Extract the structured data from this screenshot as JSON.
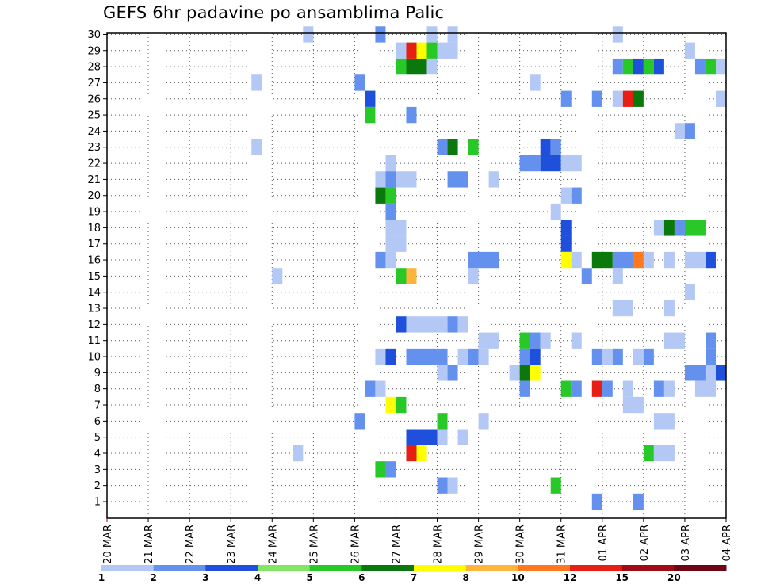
{
  "page_title": "GEFS 6hr padavine po ansamblima Palic",
  "chart_data": {
    "type": "heatmap",
    "title": "GEFS 6hr padavine po ansamblima Palic",
    "x_time_axis": {
      "range_hours": [
        0,
        360
      ],
      "tick_labels": [
        "20 MAR",
        "21 MAR",
        "22 MAR",
        "23 MAR",
        "24 MAR",
        "25 MAR",
        "26 MAR",
        "27 MAR",
        "28 MAR",
        "29 MAR",
        "30 MAR",
        "31 MAR",
        "01 APR",
        "02 APR",
        "03 APR",
        "04 APR"
      ],
      "step_hours": 6
    },
    "y_members": {
      "range": [
        1,
        30
      ],
      "tick_labels": [
        1,
        2,
        3,
        4,
        5,
        6,
        7,
        8,
        9,
        10,
        11,
        12,
        13,
        14,
        15,
        16,
        17,
        18,
        19,
        20,
        21,
        22,
        23,
        24,
        25,
        26,
        27,
        28,
        29,
        30
      ]
    },
    "grid": true,
    "colorbar": {
      "levels": [
        "1",
        "2",
        "3",
        "4",
        "5",
        "6",
        "7",
        "8",
        "10",
        "12",
        "15",
        "20"
      ],
      "colors": [
        "#b4c8f5",
        "#6491ee",
        "#1e50dc",
        "#82e664",
        "#28c828",
        "#0a780a",
        "#ffff00",
        "#ffb43c",
        "#ff781e",
        "#e61e14",
        "#a00a14",
        "#6e0514"
      ]
    },
    "cells_legend": "[member, start_hour, duration_hours, class_index]",
    "cells": [
      [
        30,
        114,
        6,
        0
      ],
      [
        30,
        156,
        6,
        1
      ],
      [
        30,
        186,
        6,
        0
      ],
      [
        30,
        198,
        6,
        0
      ],
      [
        30,
        294,
        6,
        0
      ],
      [
        29,
        168,
        6,
        0
      ],
      [
        29,
        174,
        6,
        9
      ],
      [
        29,
        180,
        6,
        6
      ],
      [
        29,
        186,
        6,
        4
      ],
      [
        29,
        192,
        12,
        0
      ],
      [
        29,
        336,
        6,
        0
      ],
      [
        28,
        168,
        6,
        4
      ],
      [
        28,
        174,
        12,
        5
      ],
      [
        28,
        186,
        6,
        0
      ],
      [
        28,
        294,
        6,
        1
      ],
      [
        28,
        300,
        6,
        4
      ],
      [
        28,
        306,
        6,
        2
      ],
      [
        28,
        312,
        6,
        4
      ],
      [
        28,
        318,
        6,
        2
      ],
      [
        28,
        342,
        6,
        1
      ],
      [
        28,
        348,
        6,
        4
      ],
      [
        28,
        354,
        6,
        0
      ],
      [
        27,
        84,
        6,
        0
      ],
      [
        27,
        144,
        6,
        1
      ],
      [
        27,
        246,
        6,
        0
      ],
      [
        26,
        150,
        6,
        2
      ],
      [
        26,
        264,
        6,
        1
      ],
      [
        26,
        282,
        6,
        1
      ],
      [
        26,
        294,
        6,
        0
      ],
      [
        26,
        300,
        6,
        9
      ],
      [
        26,
        306,
        6,
        5
      ],
      [
        26,
        354,
        6,
        0
      ],
      [
        25,
        150,
        6,
        4
      ],
      [
        25,
        174,
        6,
        1
      ],
      [
        24,
        330,
        6,
        0
      ],
      [
        24,
        336,
        6,
        1
      ],
      [
        23,
        84,
        6,
        0
      ],
      [
        23,
        192,
        6,
        1
      ],
      [
        23,
        198,
        6,
        5
      ],
      [
        23,
        210,
        6,
        4
      ],
      [
        23,
        252,
        6,
        2
      ],
      [
        23,
        258,
        6,
        1
      ],
      [
        22,
        162,
        6,
        0
      ],
      [
        22,
        240,
        12,
        1
      ],
      [
        22,
        252,
        12,
        2
      ],
      [
        22,
        264,
        12,
        0
      ],
      [
        21,
        156,
        6,
        0
      ],
      [
        21,
        162,
        6,
        1
      ],
      [
        21,
        168,
        12,
        0
      ],
      [
        21,
        198,
        12,
        1
      ],
      [
        21,
        222,
        6,
        0
      ],
      [
        20,
        156,
        6,
        5
      ],
      [
        20,
        162,
        6,
        4
      ],
      [
        20,
        264,
        6,
        0
      ],
      [
        20,
        270,
        6,
        1
      ],
      [
        19,
        162,
        6,
        1
      ],
      [
        19,
        258,
        6,
        0
      ],
      [
        18,
        162,
        12,
        0
      ],
      [
        18,
        264,
        6,
        2
      ],
      [
        18,
        318,
        6,
        0
      ],
      [
        18,
        324,
        6,
        5
      ],
      [
        18,
        330,
        6,
        1
      ],
      [
        18,
        336,
        12,
        4
      ],
      [
        17,
        162,
        12,
        0
      ],
      [
        17,
        264,
        6,
        2
      ],
      [
        16,
        156,
        6,
        1
      ],
      [
        16,
        162,
        6,
        0
      ],
      [
        16,
        210,
        18,
        1
      ],
      [
        16,
        264,
        6,
        6
      ],
      [
        16,
        270,
        6,
        0
      ],
      [
        16,
        282,
        12,
        5
      ],
      [
        16,
        294,
        12,
        1
      ],
      [
        16,
        306,
        6,
        8
      ],
      [
        16,
        312,
        6,
        0
      ],
      [
        16,
        324,
        6,
        0
      ],
      [
        16,
        336,
        12,
        0
      ],
      [
        16,
        348,
        6,
        2
      ],
      [
        15,
        96,
        6,
        0
      ],
      [
        15,
        168,
        6,
        4
      ],
      [
        15,
        174,
        6,
        7
      ],
      [
        15,
        210,
        6,
        0
      ],
      [
        15,
        276,
        6,
        1
      ],
      [
        15,
        294,
        6,
        0
      ],
      [
        14,
        336,
        6,
        0
      ],
      [
        13,
        294,
        12,
        0
      ],
      [
        13,
        324,
        6,
        0
      ],
      [
        12,
        168,
        6,
        2
      ],
      [
        12,
        174,
        18,
        0
      ],
      [
        12,
        192,
        6,
        0
      ],
      [
        12,
        198,
        6,
        1
      ],
      [
        12,
        204,
        6,
        0
      ],
      [
        11,
        216,
        12,
        0
      ],
      [
        11,
        240,
        6,
        4
      ],
      [
        11,
        246,
        6,
        1
      ],
      [
        11,
        252,
        6,
        0
      ],
      [
        11,
        270,
        6,
        0
      ],
      [
        11,
        324,
        12,
        0
      ],
      [
        11,
        348,
        6,
        1
      ],
      [
        10,
        156,
        6,
        0
      ],
      [
        10,
        162,
        6,
        2
      ],
      [
        10,
        174,
        24,
        1
      ],
      [
        10,
        204,
        6,
        0
      ],
      [
        10,
        210,
        6,
        1
      ],
      [
        10,
        216,
        6,
        0
      ],
      [
        10,
        240,
        6,
        1
      ],
      [
        10,
        246,
        6,
        2
      ],
      [
        10,
        282,
        6,
        1
      ],
      [
        10,
        288,
        6,
        0
      ],
      [
        10,
        294,
        6,
        1
      ],
      [
        10,
        306,
        6,
        0
      ],
      [
        10,
        312,
        6,
        1
      ],
      [
        10,
        348,
        6,
        1
      ],
      [
        9,
        192,
        6,
        0
      ],
      [
        9,
        198,
        6,
        1
      ],
      [
        9,
        234,
        6,
        0
      ],
      [
        9,
        240,
        6,
        5
      ],
      [
        9,
        246,
        6,
        6
      ],
      [
        9,
        336,
        12,
        1
      ],
      [
        9,
        348,
        6,
        0
      ],
      [
        9,
        354,
        6,
        2
      ],
      [
        8,
        150,
        6,
        1
      ],
      [
        8,
        156,
        6,
        0
      ],
      [
        8,
        240,
        6,
        1
      ],
      [
        8,
        264,
        6,
        4
      ],
      [
        8,
        270,
        6,
        1
      ],
      [
        8,
        282,
        6,
        9
      ],
      [
        8,
        288,
        6,
        1
      ],
      [
        8,
        300,
        6,
        0
      ],
      [
        8,
        318,
        6,
        1
      ],
      [
        8,
        324,
        6,
        0
      ],
      [
        8,
        342,
        12,
        0
      ],
      [
        7,
        162,
        6,
        6
      ],
      [
        7,
        168,
        6,
        4
      ],
      [
        7,
        300,
        12,
        0
      ],
      [
        6,
        144,
        6,
        1
      ],
      [
        6,
        192,
        6,
        4
      ],
      [
        6,
        216,
        6,
        0
      ],
      [
        6,
        318,
        12,
        0
      ],
      [
        5,
        174,
        18,
        2
      ],
      [
        5,
        192,
        6,
        0
      ],
      [
        5,
        204,
        6,
        0
      ],
      [
        4,
        108,
        6,
        0
      ],
      [
        4,
        174,
        6,
        9
      ],
      [
        4,
        180,
        6,
        6
      ],
      [
        4,
        312,
        6,
        4
      ],
      [
        4,
        318,
        12,
        0
      ],
      [
        3,
        156,
        6,
        4
      ],
      [
        3,
        162,
        6,
        1
      ],
      [
        2,
        192,
        6,
        1
      ],
      [
        2,
        198,
        6,
        0
      ],
      [
        2,
        258,
        6,
        4
      ],
      [
        1,
        282,
        6,
        1
      ],
      [
        1,
        306,
        6,
        1
      ]
    ]
  }
}
